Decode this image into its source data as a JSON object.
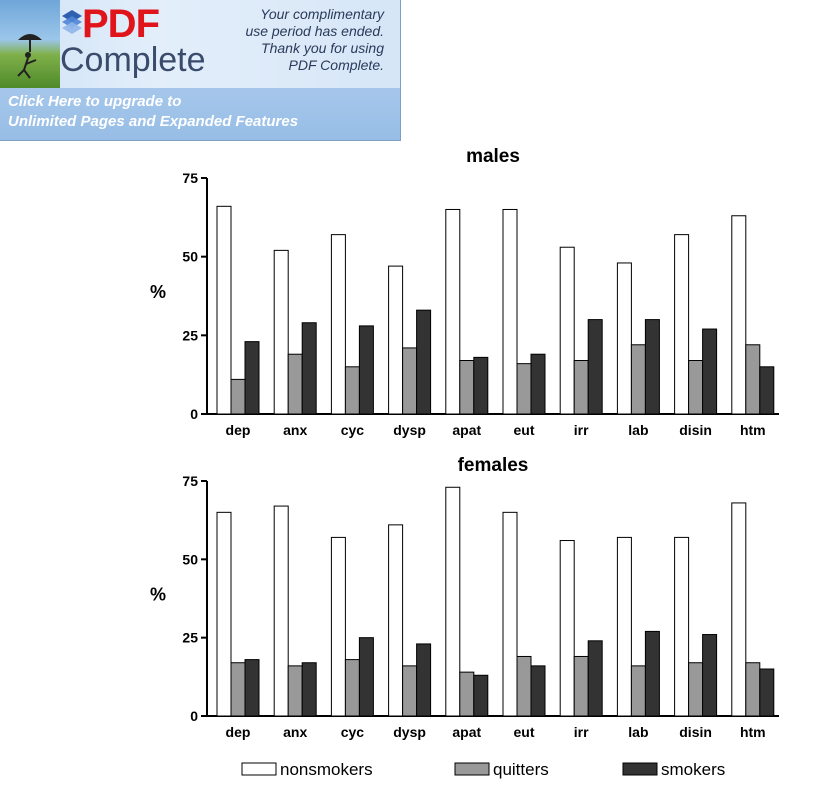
{
  "banner": {
    "brand_pdf": "PDF",
    "brand_complete": "Complete",
    "notice_lines": [
      "Your complimentary",
      "use period has ended.",
      "Thank you for using",
      "PDF Complete."
    ],
    "upgrade_line1": "Click Here to upgrade to",
    "upgrade_line2": "Unlimited Pages and Expanded Features",
    "icon": "layered-diamond-icon"
  },
  "colors": {
    "nonsmokers": "#ffffff",
    "quitters": "#999999",
    "smokers": "#333333",
    "brand_red": "#e0141b"
  },
  "legend": {
    "position": "bottom",
    "entries": [
      "nonsmokers",
      "quitters",
      "smokers"
    ]
  },
  "chart_data": [
    {
      "type": "bar",
      "title": "males",
      "ylabel": "%",
      "xlabel": "",
      "ylim": [
        0,
        75
      ],
      "yticks": [
        0,
        25,
        50,
        75
      ],
      "grid": false,
      "categories": [
        "dep",
        "anx",
        "cyc",
        "dysp",
        "apat",
        "eut",
        "irr",
        "lab",
        "disin",
        "htm"
      ],
      "series": [
        {
          "name": "nonsmokers",
          "values": [
            66,
            52,
            57,
            47,
            65,
            65,
            53,
            48,
            57,
            63
          ]
        },
        {
          "name": "quitters",
          "values": [
            11,
            19,
            15,
            21,
            17,
            16,
            17,
            22,
            17,
            22
          ]
        },
        {
          "name": "smokers",
          "values": [
            23,
            29,
            28,
            33,
            18,
            19,
            30,
            30,
            27,
            15
          ]
        }
      ]
    },
    {
      "type": "bar",
      "title": "females",
      "ylabel": "%",
      "xlabel": "",
      "ylim": [
        0,
        75
      ],
      "yticks": [
        0,
        25,
        50,
        75
      ],
      "grid": false,
      "categories": [
        "dep",
        "anx",
        "cyc",
        "dysp",
        "apat",
        "eut",
        "irr",
        "lab",
        "disin",
        "htm"
      ],
      "series": [
        {
          "name": "nonsmokers",
          "values": [
            65,
            67,
            57,
            61,
            73,
            65,
            56,
            57,
            57,
            68
          ]
        },
        {
          "name": "quitters",
          "values": [
            17,
            16,
            18,
            16,
            14,
            19,
            19,
            16,
            17,
            17
          ]
        },
        {
          "name": "smokers",
          "values": [
            18,
            17,
            25,
            23,
            13,
            16,
            24,
            27,
            26,
            15
          ]
        }
      ]
    }
  ]
}
